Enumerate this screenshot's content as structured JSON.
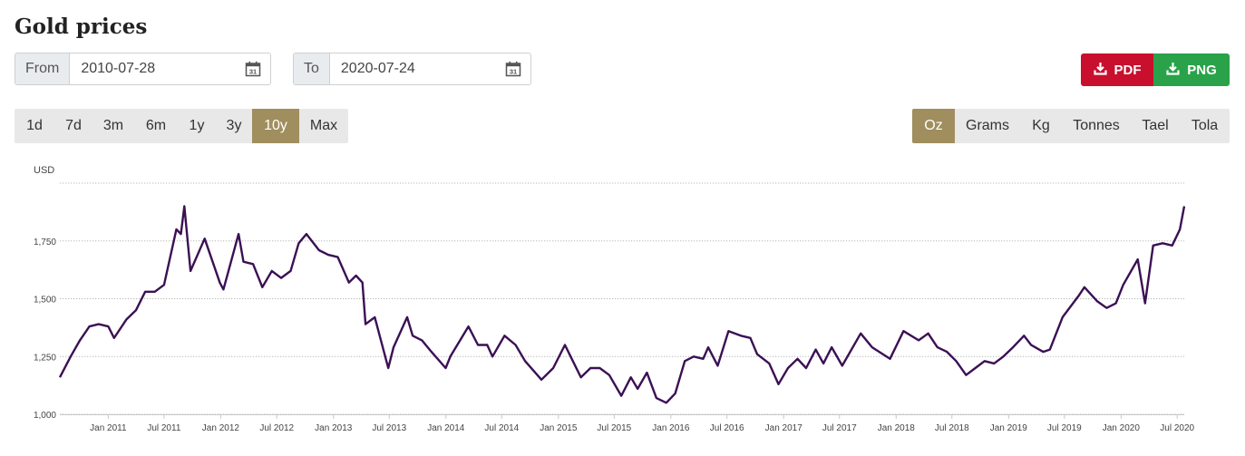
{
  "header": {
    "title": "Gold prices"
  },
  "range": {
    "from_label": "From",
    "from_value": "2010-07-28",
    "to_label": "To",
    "to_value": "2020-07-24",
    "calendar_day": "31"
  },
  "download": {
    "pdf_label": "PDF",
    "png_label": "PNG"
  },
  "periods": [
    "1d",
    "7d",
    "3m",
    "6m",
    "1y",
    "3y",
    "10y",
    "Max"
  ],
  "active_period": "10y",
  "units": [
    "Oz",
    "Grams",
    "Kg",
    "Tonnes",
    "Tael",
    "Tola"
  ],
  "active_unit": "Oz",
  "colors": {
    "accent": "#a08e5e",
    "pdf": "#c8102e",
    "png": "#2aa24a",
    "line": "#3b1054"
  },
  "chart_data": {
    "type": "line",
    "ylabel": "USD",
    "ylim": [
      1000,
      2000
    ],
    "yticks": [
      1000,
      1250,
      1500,
      1750
    ],
    "ytick_labels": [
      "1,000",
      "1,250",
      "1,500",
      "1,750"
    ],
    "grid": true,
    "xlim": [
      "2010-07-28",
      "2020-07-24"
    ],
    "xticks": [
      "2011-01-01",
      "2011-07-01",
      "2012-01-01",
      "2012-07-01",
      "2013-01-01",
      "2013-07-01",
      "2014-01-01",
      "2014-07-01",
      "2015-01-01",
      "2015-07-01",
      "2016-01-01",
      "2016-07-01",
      "2017-01-01",
      "2017-07-01",
      "2018-01-01",
      "2018-07-01",
      "2019-01-01",
      "2019-07-01",
      "2020-01-01",
      "2020-07-01"
    ],
    "xtick_labels": [
      "Jan 2011",
      "Jul 2011",
      "Jan 2012",
      "Jul 2012",
      "Jan 2013",
      "Jul 2013",
      "Jan 2014",
      "Jul 2014",
      "Jan 2015",
      "Jul 2015",
      "Jan 2016",
      "Jul 2016",
      "Jan 2017",
      "Jul 2017",
      "Jan 2018",
      "Jul 2018",
      "Jan 2019",
      "Jul 2019",
      "Jan 2020",
      "Jul 2020"
    ],
    "series": [
      {
        "name": "",
        "points": [
          [
            "2010-07-28",
            1160
          ],
          [
            "2010-09-01",
            1250
          ],
          [
            "2010-10-01",
            1320
          ],
          [
            "2010-11-01",
            1380
          ],
          [
            "2010-12-01",
            1390
          ],
          [
            "2011-01-01",
            1380
          ],
          [
            "2011-01-20",
            1330
          ],
          [
            "2011-03-01",
            1410
          ],
          [
            "2011-04-01",
            1450
          ],
          [
            "2011-05-01",
            1530
          ],
          [
            "2011-06-01",
            1530
          ],
          [
            "2011-07-01",
            1560
          ],
          [
            "2011-08-10",
            1800
          ],
          [
            "2011-08-25",
            1780
          ],
          [
            "2011-09-05",
            1900
          ],
          [
            "2011-09-25",
            1620
          ],
          [
            "2011-11-10",
            1760
          ],
          [
            "2011-12-29",
            1570
          ],
          [
            "2012-01-10",
            1540
          ],
          [
            "2012-02-28",
            1780
          ],
          [
            "2012-03-15",
            1660
          ],
          [
            "2012-04-15",
            1650
          ],
          [
            "2012-05-15",
            1550
          ],
          [
            "2012-06-15",
            1620
          ],
          [
            "2012-07-15",
            1590
          ],
          [
            "2012-08-15",
            1620
          ],
          [
            "2012-09-10",
            1740
          ],
          [
            "2012-10-05",
            1780
          ],
          [
            "2012-11-15",
            1710
          ],
          [
            "2012-12-15",
            1690
          ],
          [
            "2013-01-15",
            1680
          ],
          [
            "2013-02-20",
            1570
          ],
          [
            "2013-03-15",
            1600
          ],
          [
            "2013-04-05",
            1570
          ],
          [
            "2013-04-15",
            1390
          ],
          [
            "2013-05-15",
            1420
          ],
          [
            "2013-06-28",
            1200
          ],
          [
            "2013-07-15",
            1290
          ],
          [
            "2013-08-28",
            1420
          ],
          [
            "2013-09-15",
            1340
          ],
          [
            "2013-10-15",
            1320
          ],
          [
            "2013-11-15",
            1270
          ],
          [
            "2013-12-31",
            1200
          ],
          [
            "2014-01-15",
            1250
          ],
          [
            "2014-03-15",
            1380
          ],
          [
            "2014-04-15",
            1300
          ],
          [
            "2014-05-15",
            1300
          ],
          [
            "2014-06-01",
            1250
          ],
          [
            "2014-07-10",
            1340
          ],
          [
            "2014-08-15",
            1300
          ],
          [
            "2014-09-15",
            1230
          ],
          [
            "2014-11-07",
            1150
          ],
          [
            "2014-12-15",
            1200
          ],
          [
            "2015-01-22",
            1300
          ],
          [
            "2015-03-15",
            1160
          ],
          [
            "2015-04-15",
            1200
          ],
          [
            "2015-05-15",
            1200
          ],
          [
            "2015-06-15",
            1170
          ],
          [
            "2015-07-24",
            1080
          ],
          [
            "2015-08-24",
            1160
          ],
          [
            "2015-09-15",
            1110
          ],
          [
            "2015-10-15",
            1180
          ],
          [
            "2015-11-15",
            1070
          ],
          [
            "2015-12-17",
            1050
          ],
          [
            "2016-01-15",
            1090
          ],
          [
            "2016-02-15",
            1230
          ],
          [
            "2016-03-15",
            1250
          ],
          [
            "2016-04-15",
            1240
          ],
          [
            "2016-05-01",
            1290
          ],
          [
            "2016-06-01",
            1210
          ],
          [
            "2016-07-06",
            1360
          ],
          [
            "2016-08-15",
            1340
          ],
          [
            "2016-09-15",
            1330
          ],
          [
            "2016-10-07",
            1260
          ],
          [
            "2016-11-15",
            1220
          ],
          [
            "2016-12-15",
            1130
          ],
          [
            "2017-01-15",
            1200
          ],
          [
            "2017-02-15",
            1240
          ],
          [
            "2017-03-15",
            1200
          ],
          [
            "2017-04-15",
            1280
          ],
          [
            "2017-05-10",
            1220
          ],
          [
            "2017-06-06",
            1290
          ],
          [
            "2017-07-10",
            1210
          ],
          [
            "2017-09-08",
            1350
          ],
          [
            "2017-10-15",
            1290
          ],
          [
            "2017-12-12",
            1240
          ],
          [
            "2018-01-25",
            1360
          ],
          [
            "2018-03-15",
            1320
          ],
          [
            "2018-04-15",
            1350
          ],
          [
            "2018-05-15",
            1290
          ],
          [
            "2018-06-15",
            1270
          ],
          [
            "2018-07-15",
            1230
          ],
          [
            "2018-08-16",
            1170
          ],
          [
            "2018-09-15",
            1200
          ],
          [
            "2018-10-15",
            1230
          ],
          [
            "2018-11-15",
            1220
          ],
          [
            "2018-12-15",
            1250
          ],
          [
            "2019-01-15",
            1290
          ],
          [
            "2019-02-20",
            1340
          ],
          [
            "2019-03-15",
            1300
          ],
          [
            "2019-04-23",
            1270
          ],
          [
            "2019-05-15",
            1280
          ],
          [
            "2019-06-25",
            1420
          ],
          [
            "2019-08-15",
            1510
          ],
          [
            "2019-09-04",
            1550
          ],
          [
            "2019-10-15",
            1490
          ],
          [
            "2019-11-15",
            1460
          ],
          [
            "2019-12-15",
            1480
          ],
          [
            "2020-01-08",
            1560
          ],
          [
            "2020-02-24",
            1670
          ],
          [
            "2020-03-19",
            1480
          ],
          [
            "2020-04-14",
            1730
          ],
          [
            "2020-05-15",
            1740
          ],
          [
            "2020-06-15",
            1730
          ],
          [
            "2020-07-10",
            1800
          ],
          [
            "2020-07-24",
            1900
          ]
        ]
      }
    ]
  }
}
